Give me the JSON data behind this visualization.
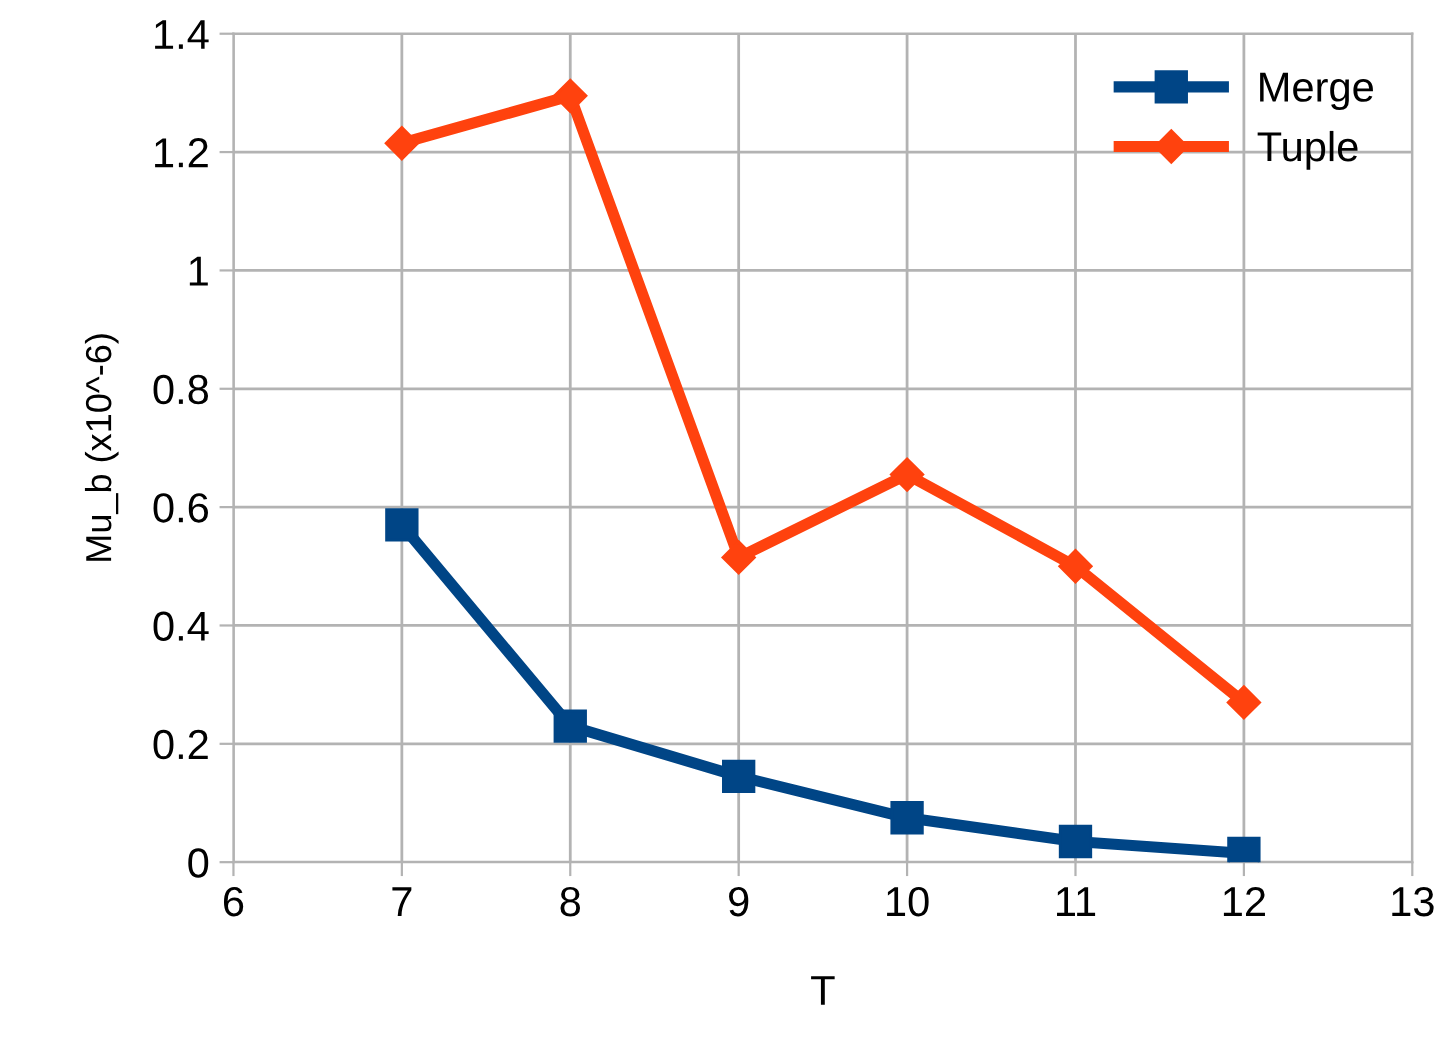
{
  "chart_data": {
    "type": "line",
    "xlabel": "T",
    "ylabel": "Mu_b (x10^-6)",
    "x": [
      7,
      8,
      9,
      10,
      11,
      12
    ],
    "series": [
      {
        "name": "Merge",
        "color": "#004586",
        "marker": "square",
        "values": [
          0.57,
          0.23,
          0.145,
          0.075,
          0.035,
          0.015
        ]
      },
      {
        "name": "Tuple",
        "color": "#ff420e",
        "marker": "diamond",
        "values": [
          1.215,
          1.295,
          0.515,
          0.655,
          0.5,
          0.27
        ]
      }
    ],
    "xlim": [
      6,
      13
    ],
    "xticks": [
      6,
      7,
      8,
      9,
      10,
      11,
      12,
      13
    ],
    "ylim": [
      0,
      1.4
    ],
    "yticks": [
      {
        "value": 0,
        "label": "0"
      },
      {
        "value": 0.2,
        "label": "0.2"
      },
      {
        "value": 0.4,
        "label": "0.4"
      },
      {
        "value": 0.6,
        "label": "0.6"
      },
      {
        "value": 0.8,
        "label": "0.8"
      },
      {
        "value": 1,
        "label": "1"
      },
      {
        "value": 1.2,
        "label": "1.2"
      },
      {
        "value": 1.4,
        "label": "1.4"
      }
    ],
    "grid": true,
    "legend": "top right",
    "line_style": "solid"
  }
}
